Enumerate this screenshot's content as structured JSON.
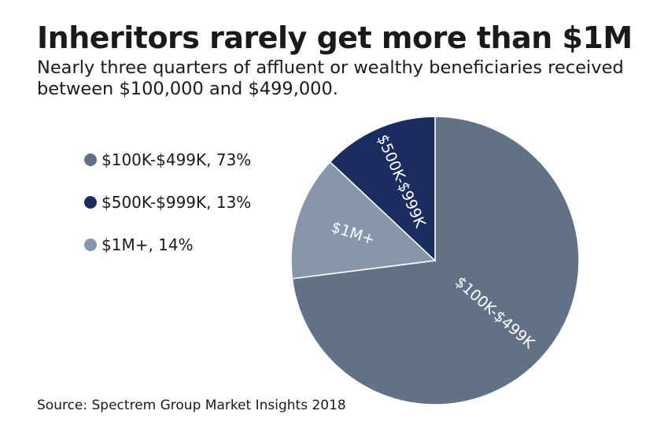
{
  "title": "Inheritors rarely get more than $1M",
  "subtitle": "Nearly three quarters of affluent or wealthy beneficiaries received between $100,000 and $499,000.",
  "source": "Source: Spectrem Group Market Insights 2018",
  "legend": [
    {
      "label": "$100K-$499K, 73%",
      "color": "#627286"
    },
    {
      "label": "$500K-$999K, 13%",
      "color": "#1b2c5e"
    },
    {
      "label": "$1M+, 14%",
      "color": "#8797ab"
    }
  ],
  "chart_data": {
    "type": "pie",
    "slices": [
      {
        "name": "$100K-$499K",
        "label": "$100K-$499K",
        "value": 73,
        "color": "#627286"
      },
      {
        "name": "$1M+",
        "label": "$1M+",
        "value": 14,
        "color": "#8797ab"
      },
      {
        "name": "$500K-$999K",
        "label": "$500K-$999K",
        "value": 13,
        "color": "#1b2c5e"
      }
    ],
    "title": "Inheritors rarely get more than $1M",
    "legend_position": "left"
  }
}
